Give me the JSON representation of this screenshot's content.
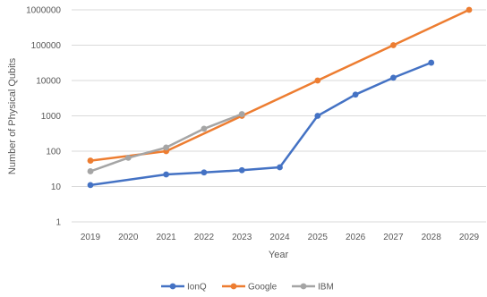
{
  "chart_data": {
    "type": "line",
    "title": "",
    "xlabel": "Year",
    "ylabel": "Number of Physical Qubits",
    "yscale": "log",
    "ylim": [
      1,
      1000000
    ],
    "y_ticks": [
      "1",
      "10",
      "100",
      "1000",
      "10000",
      "100000",
      "1000000"
    ],
    "x": [
      2019,
      2020,
      2021,
      2022,
      2023,
      2024,
      2025,
      2026,
      2027,
      2028,
      2029
    ],
    "grid": "horizontal",
    "legend_position": "bottom",
    "series": [
      {
        "name": "IonQ",
        "color": "#4472C4",
        "points": [
          [
            2019,
            11
          ],
          [
            2021,
            22
          ],
          [
            2022,
            25
          ],
          [
            2023,
            29
          ],
          [
            2024,
            35
          ],
          [
            2025,
            1000
          ],
          [
            2026,
            4000
          ],
          [
            2027,
            12000
          ],
          [
            2028,
            32000
          ]
        ]
      },
      {
        "name": "Google",
        "color": "#ED7D31",
        "points": [
          [
            2019,
            54
          ],
          [
            2021,
            100
          ],
          [
            2023,
            1000
          ],
          [
            2025,
            10000
          ],
          [
            2027,
            100000
          ],
          [
            2029,
            1000000
          ]
        ]
      },
      {
        "name": "IBM",
        "color": "#A5A5A5",
        "points": [
          [
            2019,
            27
          ],
          [
            2020,
            65
          ],
          [
            2021,
            127
          ],
          [
            2022,
            433
          ],
          [
            2023,
            1121
          ]
        ]
      }
    ]
  }
}
